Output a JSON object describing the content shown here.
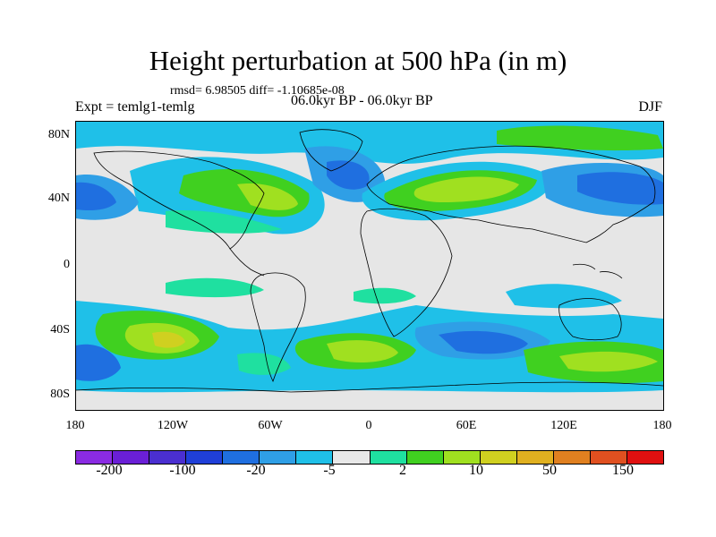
{
  "title": "Height perturbation at 500 hPa (in m)",
  "rmsd_line": "rmsd= 6.98505 diff= -1.10685e-08",
  "expt_label": "Expt = temlg1-temlg",
  "period_label": "06.0kyr BP - 06.0kyr BP",
  "season_label": "DJF",
  "y_ticks": [
    "80N",
    "40N",
    "0",
    "40S",
    "80S"
  ],
  "x_ticks": [
    "180",
    "120W",
    "60W",
    "0",
    "60E",
    "120E",
    "180"
  ],
  "colorbar": {
    "colors": [
      "#8a2be2",
      "#6a1fd6",
      "#4a2fd0",
      "#1f3fd8",
      "#1f6fe0",
      "#2f9fe6",
      "#1fc0e8",
      "#e8e8e8",
      "#1fe0a0",
      "#40d020",
      "#a0e020",
      "#d0d020",
      "#e0b020",
      "#e08020",
      "#e05020",
      "#e01010"
    ],
    "labels": [
      "-200",
      "-100",
      "-20",
      "-5",
      "2",
      "10",
      "50",
      "150"
    ]
  },
  "map": {
    "projection": "cylindrical-equidistant",
    "field": "500 hPa height perturbation",
    "level_colors": {
      "blue": "#1f6fe0",
      "light_blue": "#2f9fe6",
      "cyan": "#1fc0e8",
      "neutral": "#e8e8e8",
      "teal_green": "#1fe0a0",
      "green": "#40d020",
      "yellow_green": "#a0e020",
      "yellow": "#d0d020",
      "orange": "#e0b020"
    }
  }
}
